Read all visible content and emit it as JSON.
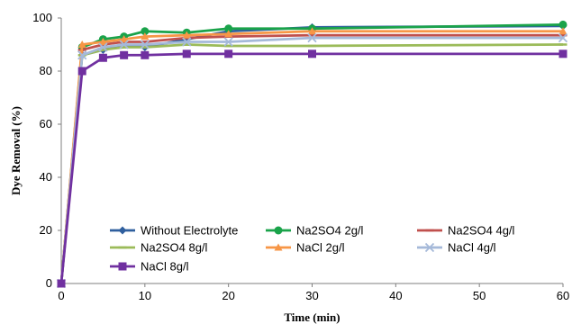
{
  "chart_data": {
    "type": "line",
    "xlabel": "Time (min)",
    "ylabel": "Dye Removal (%)",
    "xlim": [
      0,
      60
    ],
    "ylim": [
      0,
      100
    ],
    "xticks": [
      0,
      10,
      20,
      30,
      40,
      50,
      60
    ],
    "yticks": [
      0,
      20,
      40,
      60,
      80,
      100
    ],
    "grid": false,
    "legend_position": "bottom-center",
    "x": [
      0,
      2.5,
      5,
      7.5,
      10,
      15,
      20,
      30,
      60
    ],
    "series": [
      {
        "name": "Without Electrolyte",
        "color": "#2f5f9e",
        "marker": "diamond",
        "values": [
          0,
          86,
          88,
          90,
          89,
          92,
          95,
          96.5,
          97
        ]
      },
      {
        "name": "Na2SO4 2g/l",
        "color": "#1aa34a",
        "marker": "circle",
        "values": [
          0,
          89,
          92,
          93,
          95,
          94.5,
          96,
          96,
          97.5
        ]
      },
      {
        "name": "Na2SO4 4g/l",
        "color": "#c0504d",
        "marker": "dash",
        "values": [
          0,
          88,
          90,
          91,
          91,
          92.5,
          93,
          93.5,
          93.5
        ]
      },
      {
        "name": "Na2SO4 8g/l",
        "color": "#9bbb59",
        "marker": "dash",
        "values": [
          0,
          86,
          88,
          89,
          89,
          90,
          89.5,
          89.5,
          90
        ]
      },
      {
        "name": "NaCl 2g/l",
        "color": "#f79646",
        "marker": "triangle",
        "values": [
          0,
          90,
          91,
          92,
          93,
          93.5,
          94,
          95,
          95
        ]
      },
      {
        "name": "NaCl 4g/l",
        "color": "#a5b9d9",
        "marker": "x",
        "values": [
          0,
          86,
          89,
          90,
          90,
          91,
          91,
          92.5,
          92.5
        ]
      },
      {
        "name": "NaCl 8g/l",
        "color": "#7030a0",
        "marker": "square",
        "values": [
          0,
          80,
          85,
          86,
          86,
          86.5,
          86.5,
          86.5,
          86.5
        ]
      }
    ]
  }
}
